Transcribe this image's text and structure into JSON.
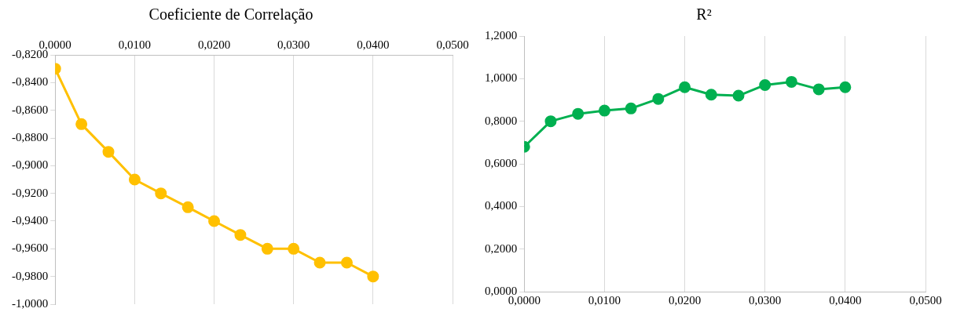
{
  "chart_data": [
    {
      "type": "line",
      "title": "Coeficiente de Correlação",
      "x": [
        0,
        0.0033,
        0.0067,
        0.01,
        0.0133,
        0.0167,
        0.02,
        0.0233,
        0.0267,
        0.03,
        0.0333,
        0.0367,
        0.04
      ],
      "series": [
        {
          "color": "#ffc000",
          "values": [
            -0.83,
            -0.87,
            -0.89,
            -0.91,
            -0.92,
            -0.93,
            -0.94,
            -0.95,
            -0.96,
            -0.96,
            -0.97,
            -0.97,
            -0.98
          ]
        }
      ],
      "xlim": [
        0,
        0.05
      ],
      "xticks": [
        {
          "value": 0,
          "label": "0,0000"
        },
        {
          "value": 0.01,
          "label": "0,0100"
        },
        {
          "value": 0.02,
          "label": "0,0200"
        },
        {
          "value": 0.03,
          "label": "0,0300"
        },
        {
          "value": 0.04,
          "label": "0,0400"
        },
        {
          "value": 0.05,
          "label": "0,0500"
        }
      ],
      "ylim": [
        -1,
        -0.82
      ],
      "yticks": [
        {
          "value": -1,
          "label": "-1,0000"
        },
        {
          "value": -0.98,
          "label": "-0,9800"
        },
        {
          "value": -0.96,
          "label": "-0,9600"
        },
        {
          "value": -0.94,
          "label": "-0,9400"
        },
        {
          "value": -0.92,
          "label": "-0,9200"
        },
        {
          "value": -0.9,
          "label": "-0,9000"
        },
        {
          "value": -0.88,
          "label": "-0,8800"
        },
        {
          "value": -0.86,
          "label": "-0,8600"
        },
        {
          "value": -0.84,
          "label": "-0,8400"
        },
        {
          "value": -0.82,
          "label": "-0,8200"
        }
      ],
      "grid": "x",
      "marker": "circle",
      "legend": false
    },
    {
      "type": "line",
      "title": "R²",
      "x": [
        0,
        0.0033,
        0.0067,
        0.01,
        0.0133,
        0.0167,
        0.02,
        0.0233,
        0.0267,
        0.03,
        0.0333,
        0.0367,
        0.04
      ],
      "series": [
        {
          "color": "#00b050",
          "values": [
            0.68,
            0.8,
            0.835,
            0.85,
            0.86,
            0.905,
            0.96,
            0.925,
            0.92,
            0.97,
            0.985,
            0.95,
            0.96
          ]
        }
      ],
      "xlim": [
        0,
        0.05
      ],
      "xticks": [
        {
          "value": 0,
          "label": "0,0000"
        },
        {
          "value": 0.01,
          "label": "0,0100"
        },
        {
          "value": 0.02,
          "label": "0,0200"
        },
        {
          "value": 0.03,
          "label": "0,0300"
        },
        {
          "value": 0.04,
          "label": "0,0400"
        },
        {
          "value": 0.05,
          "label": "0,0500"
        }
      ],
      "ylim": [
        0,
        1.2
      ],
      "yticks": [
        {
          "value": 0,
          "label": "0,0000"
        },
        {
          "value": 0.2,
          "label": "0,2000"
        },
        {
          "value": 0.4,
          "label": "0,4000"
        },
        {
          "value": 0.6,
          "label": "0,6000"
        },
        {
          "value": 0.8,
          "label": "0,8000"
        },
        {
          "value": 1,
          "label": "1,0000"
        },
        {
          "value": 1.2,
          "label": "1,2000"
        }
      ],
      "grid": "x",
      "marker": "circle",
      "legend": false
    }
  ]
}
